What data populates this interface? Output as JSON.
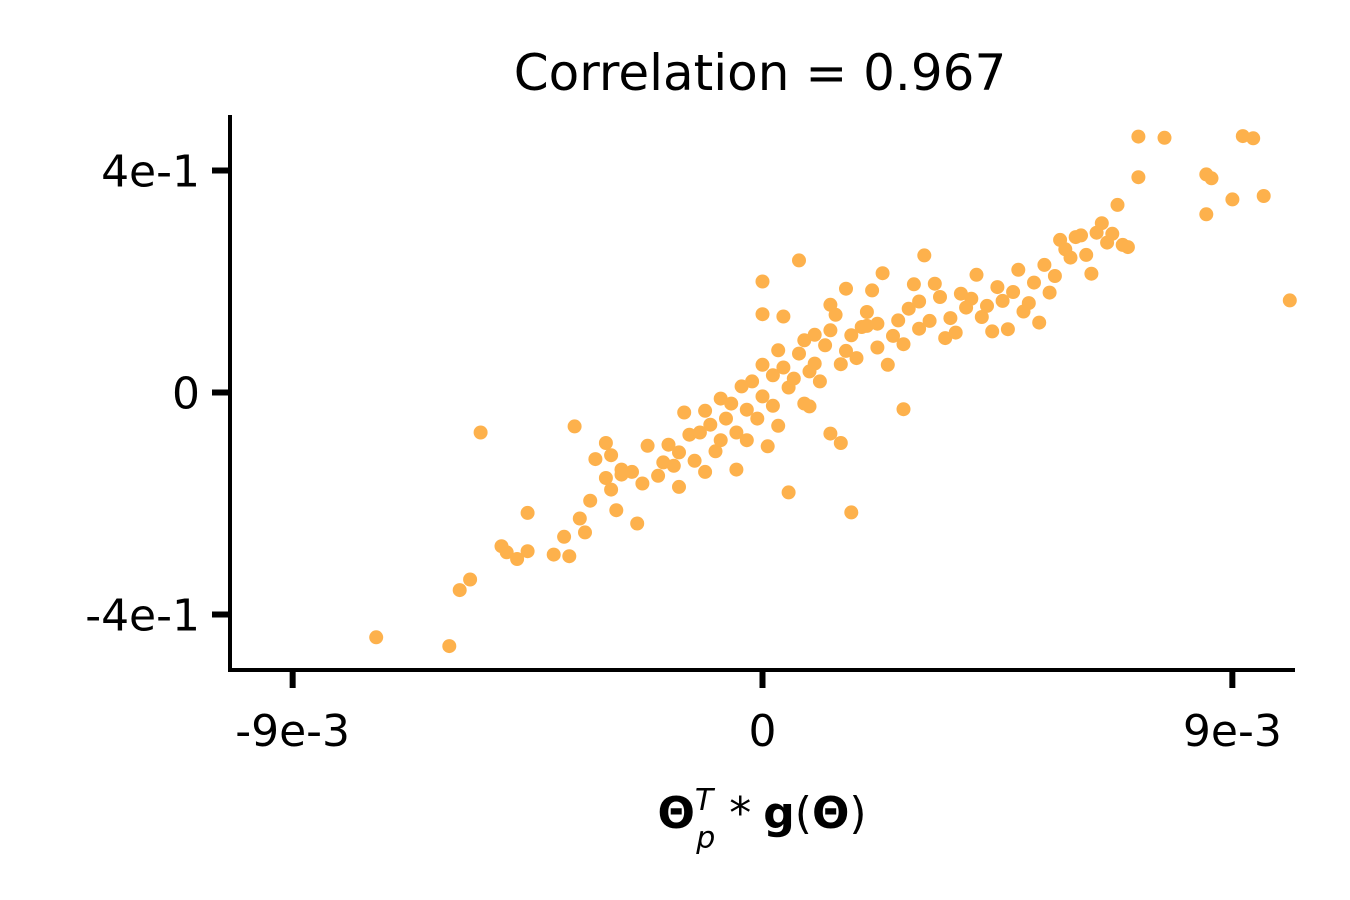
{
  "chart_data": {
    "type": "scatter",
    "title": "Correlation = 0.967",
    "xlabel": {
      "symbol": "Θ",
      "superscript": "T",
      "subscript": "p",
      "operator": "*",
      "func": "g",
      "open_paren": "(",
      "arg": "Θ",
      "close_paren": ")"
    },
    "ylabel": "",
    "xlim": [
      -0.0102,
      0.0102
    ],
    "ylim": [
      -0.5,
      0.5
    ],
    "xticks": [
      -0.009,
      0,
      0.009
    ],
    "xtick_labels": [
      "-9e-3",
      "0",
      "9e-3"
    ],
    "yticks": [
      -0.4,
      0,
      0.4
    ],
    "ytick_labels": [
      "-4e-1",
      "0",
      "4e-1"
    ],
    "grid": false,
    "marker_color": "#fdb14c",
    "points": [
      [
        -0.0074,
        -0.441
      ],
      [
        -0.006,
        -0.457
      ],
      [
        -0.0058,
        -0.356
      ],
      [
        -0.0056,
        -0.337
      ],
      [
        -0.0054,
        -0.072
      ],
      [
        -0.005,
        -0.277
      ],
      [
        -0.0049,
        -0.288
      ],
      [
        -0.0047,
        -0.3
      ],
      [
        -0.0045,
        -0.217
      ],
      [
        -0.0045,
        -0.286
      ],
      [
        -0.004,
        -0.292
      ],
      [
        -0.0038,
        -0.26
      ],
      [
        -0.0037,
        -0.295
      ],
      [
        -0.0036,
        -0.061
      ],
      [
        -0.0035,
        -0.227
      ],
      [
        -0.0034,
        -0.252
      ],
      [
        -0.0033,
        -0.195
      ],
      [
        -0.0032,
        -0.12
      ],
      [
        -0.003,
        -0.154
      ],
      [
        -0.003,
        -0.091
      ],
      [
        -0.0029,
        -0.113
      ],
      [
        -0.0029,
        -0.175
      ],
      [
        -0.0028,
        -0.212
      ],
      [
        -0.0027,
        -0.148
      ],
      [
        -0.0027,
        -0.139
      ],
      [
        -0.0025,
        -0.143
      ],
      [
        -0.0024,
        -0.236
      ],
      [
        -0.0023,
        -0.164
      ],
      [
        -0.0022,
        -0.096
      ],
      [
        -0.002,
        -0.15
      ],
      [
        -0.0019,
        -0.126
      ],
      [
        -0.0018,
        -0.094
      ],
      [
        -0.0017,
        -0.132
      ],
      [
        -0.0016,
        -0.17
      ],
      [
        -0.0016,
        -0.108
      ],
      [
        -0.0015,
        -0.036
      ],
      [
        -0.0014,
        -0.076
      ],
      [
        -0.0013,
        -0.123
      ],
      [
        -0.0012,
        -0.072
      ],
      [
        -0.0011,
        -0.033
      ],
      [
        -0.0011,
        -0.143
      ],
      [
        -0.001,
        -0.058
      ],
      [
        -0.0009,
        -0.106
      ],
      [
        -0.0008,
        -0.011
      ],
      [
        -0.0008,
        -0.086
      ],
      [
        -0.0007,
        -0.047
      ],
      [
        -0.0006,
        -0.02
      ],
      [
        -0.0005,
        -0.139
      ],
      [
        -0.0005,
        -0.072
      ],
      [
        -0.0004,
        0.011
      ],
      [
        -0.0003,
        -0.031
      ],
      [
        -0.0003,
        -0.086
      ],
      [
        -0.0002,
        0.02
      ],
      [
        -0.0001,
        -0.047
      ],
      [
        0.0,
        -0.007
      ],
      [
        0.0,
        0.05
      ],
      [
        0.0,
        0.2
      ],
      [
        0.0,
        0.141
      ],
      [
        0.0001,
        -0.097
      ],
      [
        0.0002,
        0.031
      ],
      [
        0.0002,
        -0.024
      ],
      [
        0.0003,
        0.076
      ],
      [
        0.0003,
        -0.06
      ],
      [
        0.0004,
        0.045
      ],
      [
        0.0004,
        0.137
      ],
      [
        0.0005,
        0.009
      ],
      [
        0.0005,
        -0.18
      ],
      [
        0.0006,
        0.025
      ],
      [
        0.0007,
        0.07
      ],
      [
        0.0007,
        0.238
      ],
      [
        0.0008,
        -0.02
      ],
      [
        0.0008,
        0.094
      ],
      [
        0.0009,
        0.038
      ],
      [
        0.0009,
        -0.025
      ],
      [
        0.001,
        0.052
      ],
      [
        0.001,
        0.104
      ],
      [
        0.0011,
        0.02
      ],
      [
        0.0012,
        0.085
      ],
      [
        0.0013,
        0.112
      ],
      [
        0.0013,
        0.158
      ],
      [
        0.0013,
        -0.074
      ],
      [
        0.0014,
        0.14
      ],
      [
        0.0015,
        -0.091
      ],
      [
        0.0015,
        0.051
      ],
      [
        0.0016,
        0.187
      ],
      [
        0.0016,
        0.075
      ],
      [
        0.0017,
        0.103
      ],
      [
        0.0018,
        0.062
      ],
      [
        0.0019,
        0.118
      ],
      [
        0.002,
        0.12
      ],
      [
        0.002,
        0.145
      ],
      [
        0.0021,
        0.184
      ],
      [
        0.0022,
        0.081
      ],
      [
        0.0022,
        0.124
      ],
      [
        0.0023,
        0.215
      ],
      [
        0.0024,
        0.05
      ],
      [
        0.0025,
        0.102
      ],
      [
        0.0026,
        0.13
      ],
      [
        0.0027,
        0.087
      ],
      [
        0.0028,
        0.151
      ],
      [
        0.0029,
        0.195
      ],
      [
        0.003,
        0.164
      ],
      [
        0.003,
        0.115
      ],
      [
        0.0031,
        0.247
      ],
      [
        0.0032,
        0.129
      ],
      [
        0.0033,
        0.196
      ],
      [
        0.0034,
        0.172
      ],
      [
        0.0035,
        0.098
      ],
      [
        0.0036,
        0.134
      ],
      [
        0.0037,
        0.108
      ],
      [
        0.0038,
        0.178
      ],
      [
        0.0039,
        0.153
      ],
      [
        0.004,
        0.169
      ],
      [
        0.0041,
        0.212
      ],
      [
        0.0042,
        0.136
      ],
      [
        0.0043,
        0.156
      ],
      [
        0.0044,
        0.11
      ],
      [
        0.0045,
        0.19
      ],
      [
        0.0046,
        0.165
      ],
      [
        0.0047,
        0.114
      ],
      [
        0.0048,
        0.181
      ],
      [
        0.0049,
        0.221
      ],
      [
        0.005,
        0.146
      ],
      [
        0.0051,
        0.161
      ],
      [
        0.0052,
        0.198
      ],
      [
        0.0053,
        0.126
      ],
      [
        0.0054,
        0.23
      ],
      [
        0.0055,
        0.18
      ],
      [
        0.0056,
        0.21
      ],
      [
        0.0057,
        0.275
      ],
      [
        0.0058,
        0.258
      ],
      [
        0.0059,
        0.243
      ],
      [
        0.006,
        0.28
      ],
      [
        0.0061,
        0.283
      ],
      [
        0.0062,
        0.248
      ],
      [
        0.0063,
        0.214
      ],
      [
        0.0064,
        0.288
      ],
      [
        0.0065,
        0.305
      ],
      [
        0.0066,
        0.27
      ],
      [
        0.0067,
        0.286
      ],
      [
        0.0068,
        0.338
      ],
      [
        0.0069,
        0.266
      ],
      [
        0.007,
        0.262
      ],
      [
        0.0072,
        0.461
      ],
      [
        0.0072,
        0.388
      ],
      [
        0.0077,
        0.459
      ],
      [
        0.0085,
        0.393
      ],
      [
        0.0085,
        0.321
      ],
      [
        0.0086,
        0.386
      ],
      [
        0.009,
        0.348
      ],
      [
        0.0092,
        0.462
      ],
      [
        0.0094,
        0.458
      ],
      [
        0.0096,
        0.354
      ],
      [
        0.0101,
        0.166
      ],
      [
        0.0027,
        -0.03
      ],
      [
        0.0017,
        -0.216
      ]
    ]
  }
}
